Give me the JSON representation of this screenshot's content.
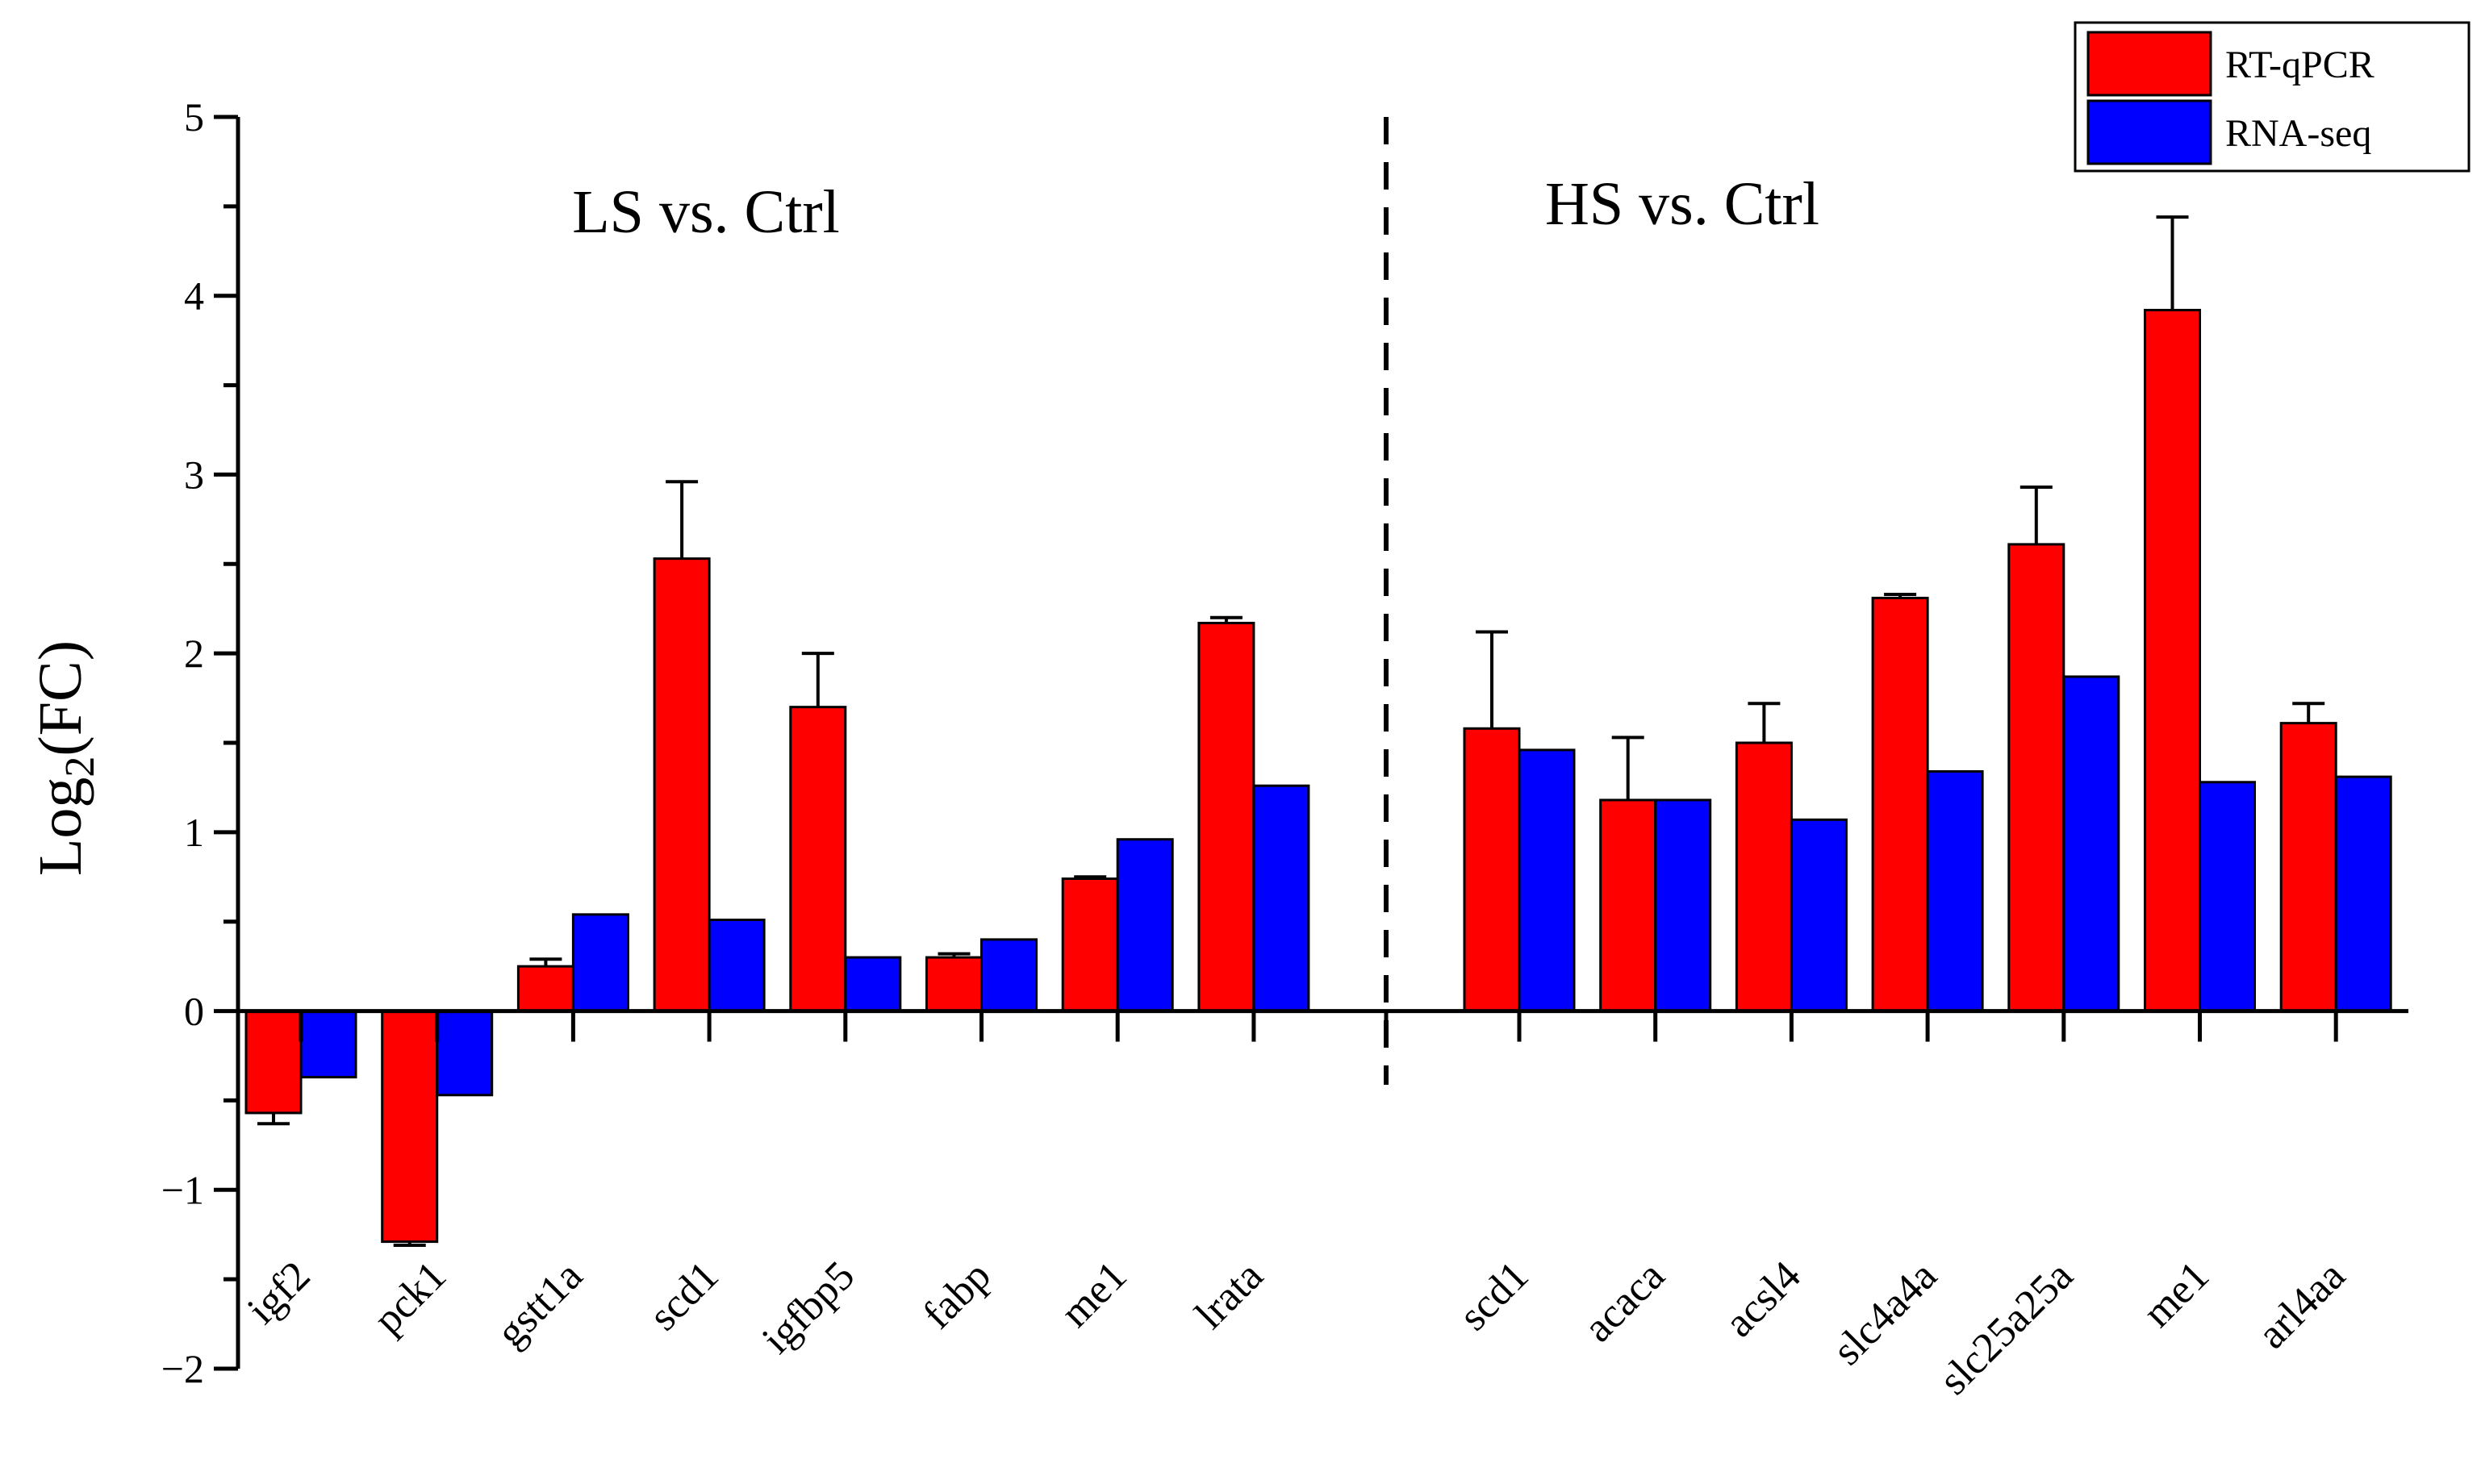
{
  "chart_data": {
    "type": "bar",
    "ylabel": {
      "base": "Log",
      "sub": "2",
      "rest": "(FC)"
    },
    "ylim": [
      -2,
      5
    ],
    "yticks": [
      5,
      4,
      3,
      2,
      1,
      0,
      -1,
      -2
    ],
    "ytick_labels": [
      "5",
      "4",
      "3",
      "2",
      "1",
      "0",
      "−1",
      "−2"
    ],
    "grid": false,
    "legend_position": "top-right",
    "colors": {
      "rtqpcr": "#ff0000",
      "rnaseq": "#0000ff"
    },
    "legend": [
      {
        "name": "RT-qPCR",
        "color": "#ff0000"
      },
      {
        "name": "RNA-seq",
        "color": "#0000ff"
      }
    ],
    "groups": [
      {
        "label": "LS vs. Ctrl",
        "categories": [
          "igf2",
          "pck1",
          "gstt1a",
          "scd1",
          "igfbp5",
          "fabp",
          "me1",
          "lrata"
        ],
        "series": [
          {
            "name": "RT-qPCR",
            "values": [
              -0.57,
              -1.29,
              0.25,
              2.53,
              1.7,
              0.3,
              0.74,
              2.17
            ],
            "errors": [
              0.06,
              0.02,
              0.04,
              0.43,
              0.3,
              0.02,
              0.01,
              0.03
            ]
          },
          {
            "name": "RNA-seq",
            "values": [
              -0.37,
              -0.47,
              0.54,
              0.51,
              0.3,
              0.4,
              0.96,
              1.26
            ]
          }
        ]
      },
      {
        "label": "HS vs. Ctrl",
        "categories": [
          "scd1",
          "acaca",
          "acsl4",
          "slc4a4a",
          "slc25a25a",
          "me1",
          "arl4aa"
        ],
        "series": [
          {
            "name": "RT-qPCR",
            "values": [
              1.58,
              1.18,
              1.5,
              2.31,
              2.61,
              3.92,
              1.61
            ],
            "errors": [
              0.54,
              0.35,
              0.22,
              0.02,
              0.32,
              0.52,
              0.11
            ]
          },
          {
            "name": "RNA-seq",
            "values": [
              1.46,
              1.18,
              1.07,
              1.34,
              1.87,
              1.28,
              1.31
            ]
          }
        ]
      }
    ]
  }
}
